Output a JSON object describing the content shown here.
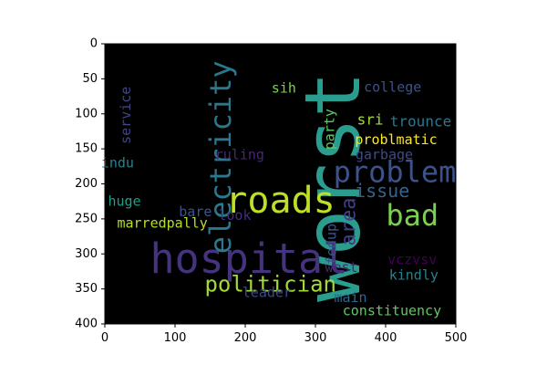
{
  "chart_data": {
    "type": "wordcloud",
    "background": "#000000",
    "xlim": [
      0,
      500
    ],
    "ylim": [
      400,
      0
    ],
    "xticks": [
      0,
      100,
      200,
      300,
      400,
      500
    ],
    "yticks": [
      0,
      50,
      100,
      150,
      200,
      250,
      300,
      350,
      400
    ],
    "grid": false,
    "words": [
      {
        "text": "worst",
        "x": 325,
        "y": 204,
        "size": 84,
        "rotate": -90,
        "color": "#2a9d8f"
      },
      {
        "text": "hospital",
        "x": 205,
        "y": 307,
        "size": 45,
        "rotate": 0,
        "color": "#46337e"
      },
      {
        "text": "roads",
        "x": 250,
        "y": 224,
        "size": 40,
        "rotate": 0,
        "color": "#bddf26"
      },
      {
        "text": "electricity",
        "x": 165,
        "y": 162,
        "size": 32,
        "rotate": -90,
        "color": "#2a788e"
      },
      {
        "text": "problem",
        "x": 413,
        "y": 183,
        "size": 32,
        "rotate": 0,
        "color": "#3b528b"
      },
      {
        "text": "bad",
        "x": 438,
        "y": 245,
        "size": 32,
        "rotate": 0,
        "color": "#7ad151"
      },
      {
        "text": "politician",
        "x": 236,
        "y": 343,
        "size": 24,
        "rotate": 0,
        "color": "#a2da37"
      },
      {
        "text": "issue",
        "x": 395,
        "y": 210,
        "size": 20,
        "rotate": 0,
        "color": "#33638d"
      },
      {
        "text": "area",
        "x": 348,
        "y": 254,
        "size": 22,
        "rotate": -90,
        "color": "#433e85"
      },
      {
        "text": "college",
        "x": 410,
        "y": 62,
        "size": 15,
        "rotate": 0,
        "color": "#3b528b"
      },
      {
        "text": "sih",
        "x": 255,
        "y": 63,
        "size": 15,
        "rotate": 0,
        "color": "#7ad151"
      },
      {
        "text": "service",
        "x": 30,
        "y": 102,
        "size": 15,
        "rotate": -90,
        "color": "#414487"
      },
      {
        "text": "sri",
        "x": 378,
        "y": 108,
        "size": 16,
        "rotate": 0,
        "color": "#a2da37"
      },
      {
        "text": "trounce",
        "x": 450,
        "y": 111,
        "size": 16,
        "rotate": 0,
        "color": "#2a788e"
      },
      {
        "text": "party",
        "x": 320,
        "y": 122,
        "size": 15,
        "rotate": -90,
        "color": "#5ec962"
      },
      {
        "text": "problmatic",
        "x": 415,
        "y": 137,
        "size": 15,
        "rotate": 0,
        "color": "#fde725"
      },
      {
        "text": "ruling",
        "x": 192,
        "y": 158,
        "size": 15,
        "rotate": 0,
        "color": "#482878"
      },
      {
        "text": "garbage",
        "x": 398,
        "y": 158,
        "size": 15,
        "rotate": 0,
        "color": "#3e4a89"
      },
      {
        "text": "indu",
        "x": 18,
        "y": 170,
        "size": 15,
        "rotate": 0,
        "color": "#26828e"
      },
      {
        "text": "huge",
        "x": 28,
        "y": 225,
        "size": 15,
        "rotate": 0,
        "color": "#1f9e89"
      },
      {
        "text": "bare",
        "x": 129,
        "y": 240,
        "size": 15,
        "rotate": 0,
        "color": "#3b528b"
      },
      {
        "text": "look",
        "x": 185,
        "y": 245,
        "size": 15,
        "rotate": 0,
        "color": "#472d7b"
      },
      {
        "text": "marredpally",
        "x": 82,
        "y": 256,
        "size": 15,
        "rotate": 0,
        "color": "#b5de2b"
      },
      {
        "text": "fedup",
        "x": 323,
        "y": 286,
        "size": 15,
        "rotate": -90,
        "color": "#3b528b"
      },
      {
        "text": "west",
        "x": 337,
        "y": 319,
        "size": 15,
        "rotate": 0,
        "color": "#482475"
      },
      {
        "text": "vczvsv",
        "x": 438,
        "y": 308,
        "size": 15,
        "rotate": 0,
        "color": "#440154"
      },
      {
        "text": "kindly",
        "x": 440,
        "y": 330,
        "size": 15,
        "rotate": 0,
        "color": "#26828e"
      },
      {
        "text": "leader",
        "x": 231,
        "y": 355,
        "size": 15,
        "rotate": 0,
        "color": "#3e4a89"
      },
      {
        "text": "main",
        "x": 350,
        "y": 362,
        "size": 15,
        "rotate": 0,
        "color": "#31688e"
      },
      {
        "text": "constituency",
        "x": 409,
        "y": 381,
        "size": 15,
        "rotate": 0,
        "color": "#5ec962"
      }
    ]
  }
}
